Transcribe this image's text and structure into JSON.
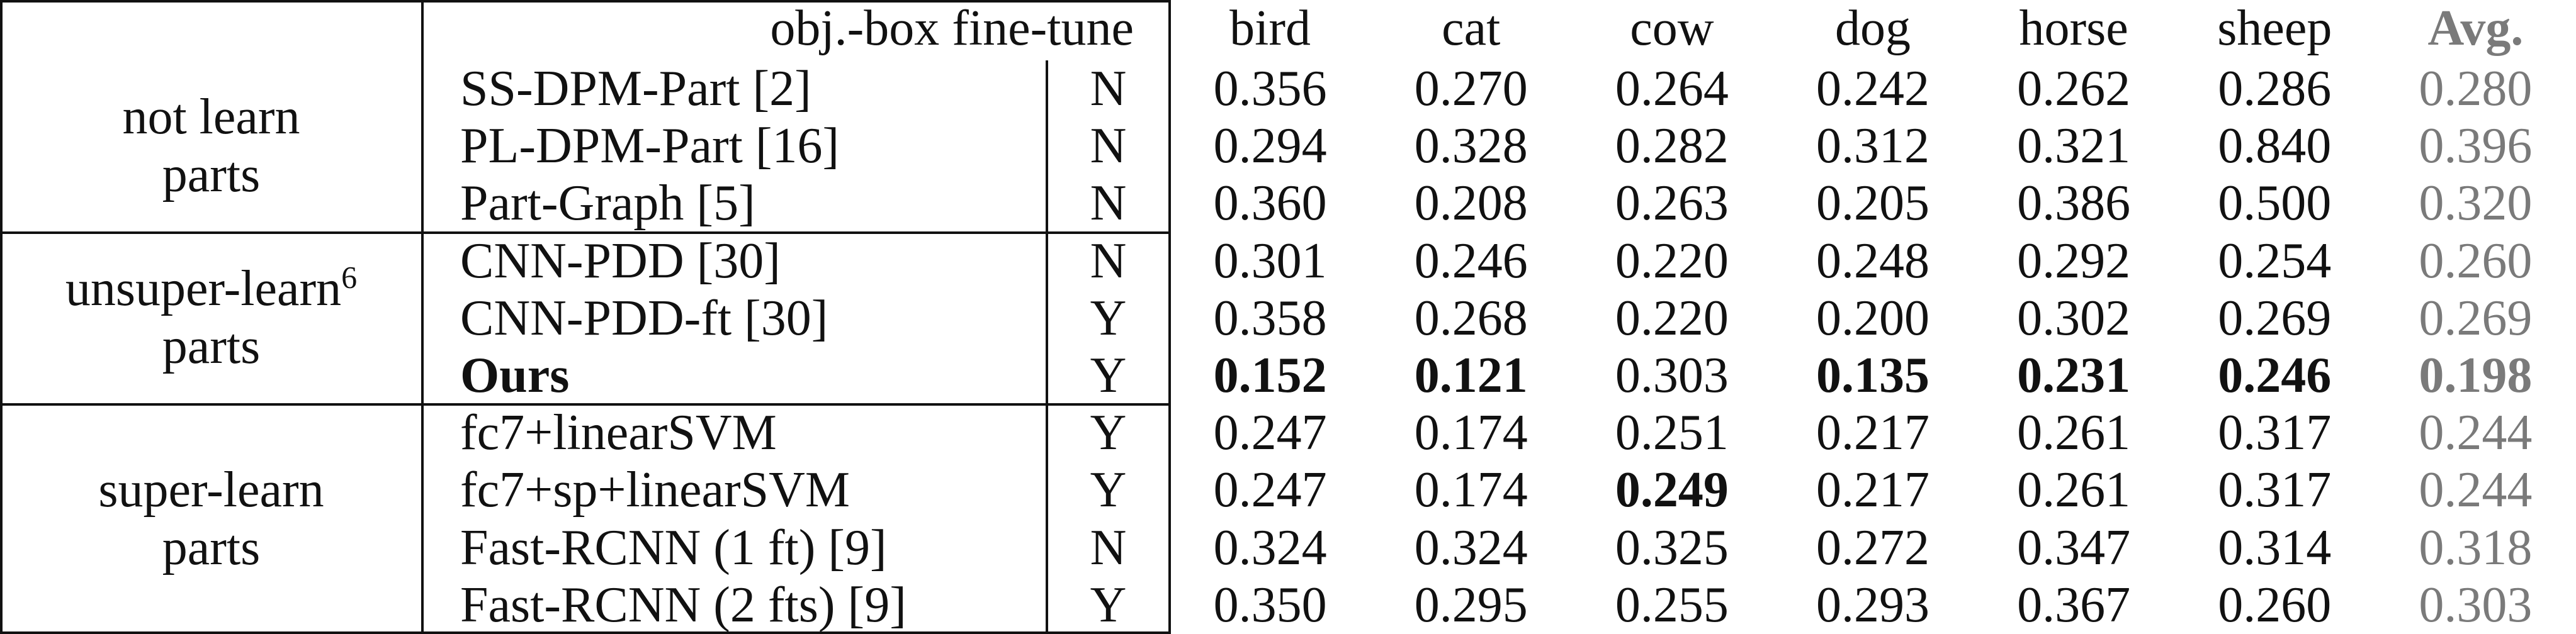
{
  "header": {
    "finetune_label": "obj.-box fine-tune",
    "columns": [
      "bird",
      "cat",
      "cow",
      "dog",
      "horse",
      "sheep",
      "Avg."
    ]
  },
  "groups": [
    {
      "label": [
        "not learn",
        "parts"
      ],
      "rows": [
        {
          "method": "SS-DPM-Part [2]",
          "finetune": "N",
          "values": [
            "0.356",
            "0.270",
            "0.264",
            "0.242",
            "0.262",
            "0.286",
            "0.280"
          ]
        },
        {
          "method": "PL-DPM-Part [16]",
          "finetune": "N",
          "values": [
            "0.294",
            "0.328",
            "0.282",
            "0.312",
            "0.321",
            "0.840",
            "0.396"
          ]
        },
        {
          "method": "Part-Graph [5]",
          "finetune": "N",
          "values": [
            "0.360",
            "0.208",
            "0.263",
            "0.205",
            "0.386",
            "0.500",
            "0.320"
          ]
        }
      ]
    },
    {
      "label": [
        "unsuper-learn",
        "parts"
      ],
      "footnote": "6",
      "rows": [
        {
          "method": "CNN-PDD [30]",
          "finetune": "N",
          "values": [
            "0.301",
            "0.246",
            "0.220",
            "0.248",
            "0.292",
            "0.254",
            "0.260"
          ]
        },
        {
          "method": "CNN-PDD-ft [30]",
          "finetune": "Y",
          "values": [
            "0.358",
            "0.268",
            "0.220",
            "0.200",
            "0.302",
            "0.269",
            "0.269"
          ]
        },
        {
          "method": "Ours",
          "method_bold": true,
          "finetune": "Y",
          "values": [
            "0.152",
            "0.121",
            "0.303",
            "0.135",
            "0.231",
            "0.246",
            "0.198"
          ],
          "bold_columns": [
            0,
            1,
            3,
            4,
            5,
            6
          ]
        }
      ]
    },
    {
      "label": [
        "super-learn",
        "parts"
      ],
      "rows": [
        {
          "method": "fc7+linearSVM",
          "finetune": "Y",
          "values": [
            "0.247",
            "0.174",
            "0.251",
            "0.217",
            "0.261",
            "0.317",
            "0.244"
          ]
        },
        {
          "method": "fc7+sp+linearSVM",
          "finetune": "Y",
          "values": [
            "0.247",
            "0.174",
            "0.249",
            "0.217",
            "0.261",
            "0.317",
            "0.244"
          ],
          "bold_columns": [
            2
          ]
        },
        {
          "method": "Fast-RCNN (1 ft) [9]",
          "finetune": "N",
          "values": [
            "0.324",
            "0.324",
            "0.325",
            "0.272",
            "0.347",
            "0.314",
            "0.318"
          ]
        },
        {
          "method": "Fast-RCNN (2 fts) [9]",
          "finetune": "Y",
          "values": [
            "0.350",
            "0.295",
            "0.255",
            "0.293",
            "0.367",
            "0.260",
            "0.303"
          ]
        }
      ]
    }
  ]
}
